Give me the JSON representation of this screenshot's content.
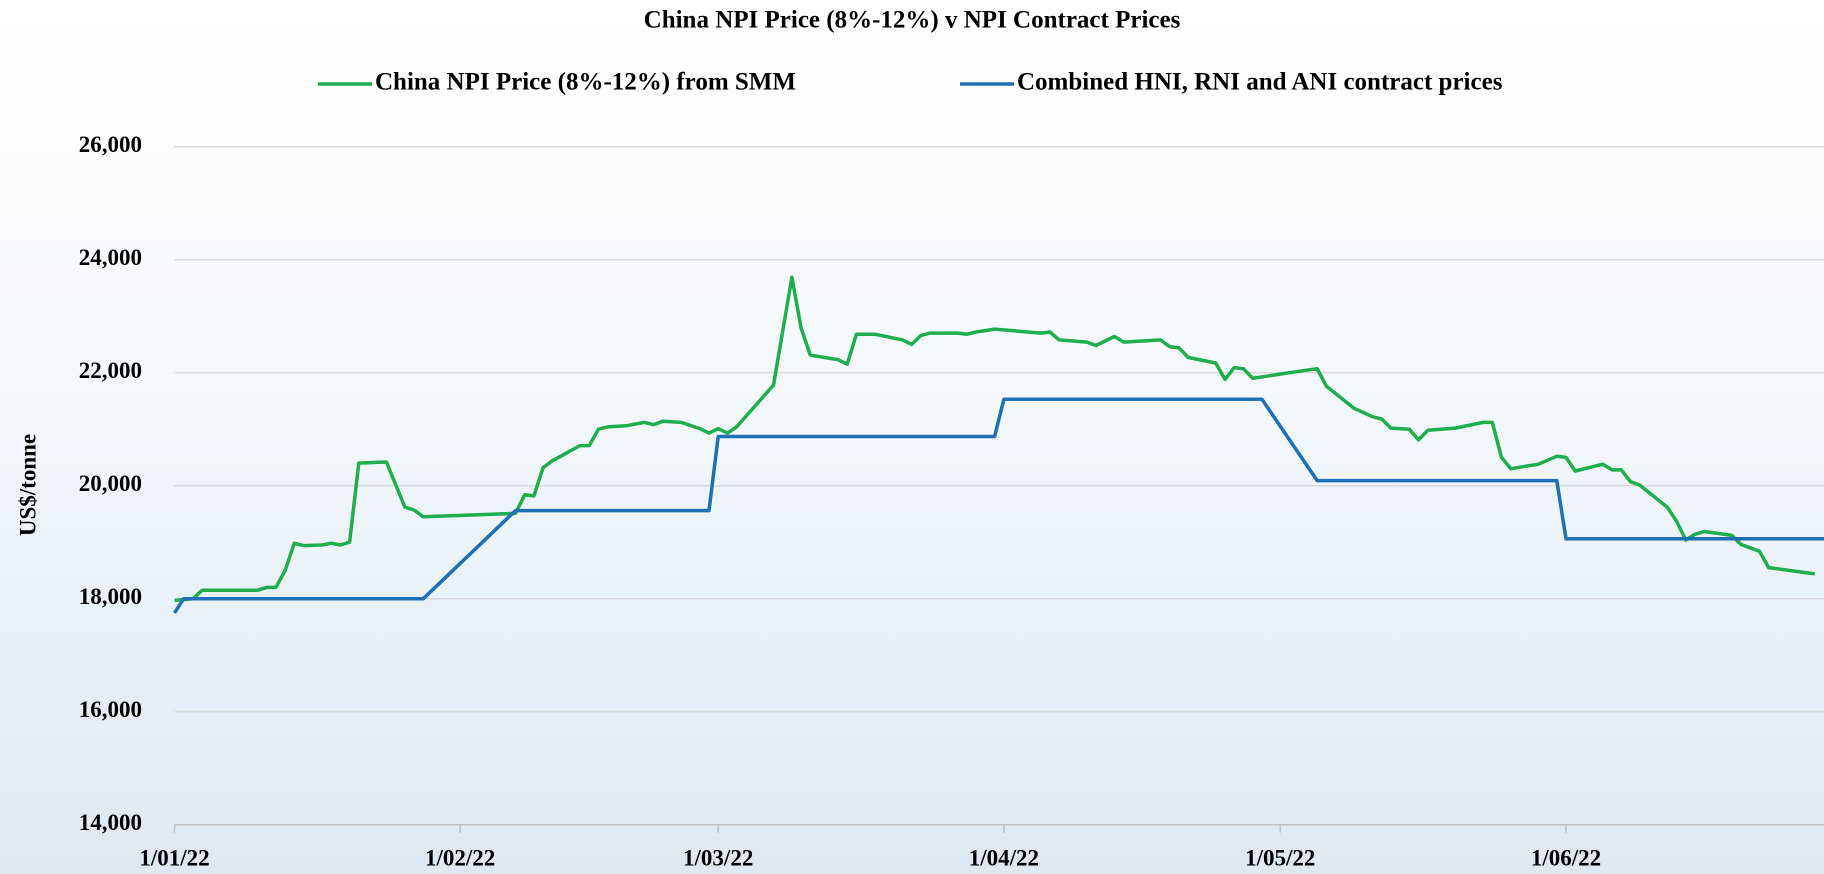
{
  "chart_data": {
    "type": "line",
    "title": "China NPI Price (8%-12%)  v NPI Contract Prices",
    "ylabel": "US$/tonne",
    "xlim": [
      "2022-01-01",
      "2022-06-29"
    ],
    "xticks": [
      {
        "value": "2022-01-01",
        "label": "1/01/22"
      },
      {
        "value": "2022-02-01",
        "label": "1/02/22"
      },
      {
        "value": "2022-03-01",
        "label": "1/03/22"
      },
      {
        "value": "2022-04-01",
        "label": "1/04/22"
      },
      {
        "value": "2022-05-01",
        "label": "1/05/22"
      },
      {
        "value": "2022-06-01",
        "label": "1/06/22"
      }
    ],
    "ylim": [
      14000,
      26000
    ],
    "yticks": [
      {
        "value": 14000,
        "label": "14,000"
      },
      {
        "value": 16000,
        "label": "16,000"
      },
      {
        "value": 18000,
        "label": "18,000"
      },
      {
        "value": 20000,
        "label": "20,000"
      },
      {
        "value": 22000,
        "label": "22,000"
      },
      {
        "value": 24000,
        "label": "24,000"
      },
      {
        "value": 26000,
        "label": "26,000"
      }
    ],
    "grid": true,
    "legend": "top",
    "series": [
      {
        "name": "China NPI Price (8%-12%) from SMM",
        "color": "#1fae4b",
        "x": [
          "2022-01-01",
          "2022-01-03",
          "2022-01-04",
          "2022-01-10",
          "2022-01-11",
          "2022-01-12",
          "2022-01-13",
          "2022-01-14",
          "2022-01-15",
          "2022-01-17",
          "2022-01-18",
          "2022-01-19",
          "2022-01-20",
          "2022-01-21",
          "2022-01-24",
          "2022-01-26",
          "2022-01-27",
          "2022-01-28",
          "2022-02-07",
          "2022-02-08",
          "2022-02-09",
          "2022-02-10",
          "2022-02-11",
          "2022-02-14",
          "2022-02-15",
          "2022-02-16",
          "2022-02-17",
          "2022-02-19",
          "2022-02-21",
          "2022-02-22",
          "2022-02-23",
          "2022-02-25",
          "2022-02-27",
          "2022-02-28",
          "2022-03-01",
          "2022-03-02",
          "2022-03-03",
          "2022-03-07",
          "2022-03-09",
          "2022-03-10",
          "2022-03-11",
          "2022-03-14",
          "2022-03-15",
          "2022-03-16",
          "2022-03-18",
          "2022-03-21",
          "2022-03-22",
          "2022-03-23",
          "2022-03-24",
          "2022-03-27",
          "2022-03-28",
          "2022-03-29",
          "2022-03-31",
          "2022-04-05",
          "2022-04-06",
          "2022-04-07",
          "2022-04-10",
          "2022-04-11",
          "2022-04-13",
          "2022-04-14",
          "2022-04-18",
          "2022-04-19",
          "2022-04-20",
          "2022-04-21",
          "2022-04-24",
          "2022-04-25",
          "2022-04-26",
          "2022-04-27",
          "2022-04-28",
          "2022-05-02",
          "2022-05-05",
          "2022-05-06",
          "2022-05-09",
          "2022-05-11",
          "2022-05-12",
          "2022-05-13",
          "2022-05-15",
          "2022-05-16",
          "2022-05-17",
          "2022-05-20",
          "2022-05-23",
          "2022-05-24",
          "2022-05-25",
          "2022-05-26",
          "2022-05-29",
          "2022-05-31",
          "2022-06-01",
          "2022-06-02",
          "2022-06-05",
          "2022-06-06",
          "2022-06-07",
          "2022-06-08",
          "2022-06-09",
          "2022-06-12",
          "2022-06-13",
          "2022-06-14",
          "2022-06-15",
          "2022-06-16",
          "2022-06-19",
          "2022-06-20",
          "2022-06-22",
          "2022-06-23",
          "2022-06-28"
        ],
        "values": [
          17970,
          18000,
          18150,
          18150,
          18200,
          18200,
          18500,
          18980,
          18940,
          18950,
          18980,
          18950,
          19000,
          20400,
          20420,
          19620,
          19570,
          19450,
          19510,
          19840,
          19820,
          20320,
          20440,
          20710,
          20710,
          21000,
          21040,
          21060,
          21120,
          21080,
          21140,
          21120,
          21010,
          20930,
          21010,
          20930,
          21040,
          21780,
          23690,
          22790,
          22310,
          22230,
          22150,
          22680,
          22680,
          22580,
          22500,
          22660,
          22700,
          22700,
          22680,
          22720,
          22770,
          22700,
          22720,
          22580,
          22540,
          22480,
          22640,
          22540,
          22580,
          22460,
          22440,
          22270,
          22170,
          21880,
          22090,
          22070,
          21900,
          22000,
          22070,
          21760,
          21370,
          21220,
          21180,
          21020,
          21000,
          20810,
          20980,
          21020,
          21120,
          21120,
          20500,
          20300,
          20380,
          20520,
          20500,
          20260,
          20380,
          20280,
          20280,
          20070,
          20010,
          19620,
          19370,
          19040,
          19140,
          19190,
          19120,
          18960,
          18840,
          18550,
          18440
        ]
      },
      {
        "name": "Combined HNI, RNI and ANI contract prices",
        "color": "#1f6fb5",
        "x": [
          "2022-01-01",
          "2022-01-02",
          "2022-01-28",
          "2022-02-07",
          "2022-02-28",
          "2022-03-01",
          "2022-03-31",
          "2022-04-01",
          "2022-04-29",
          "2022-05-05",
          "2022-05-31",
          "2022-06-01",
          "2022-06-29"
        ],
        "values": [
          17750,
          18000,
          18000,
          19560,
          19560,
          20870,
          20870,
          21530,
          21530,
          20090,
          20090,
          19060,
          19060
        ]
      }
    ]
  }
}
